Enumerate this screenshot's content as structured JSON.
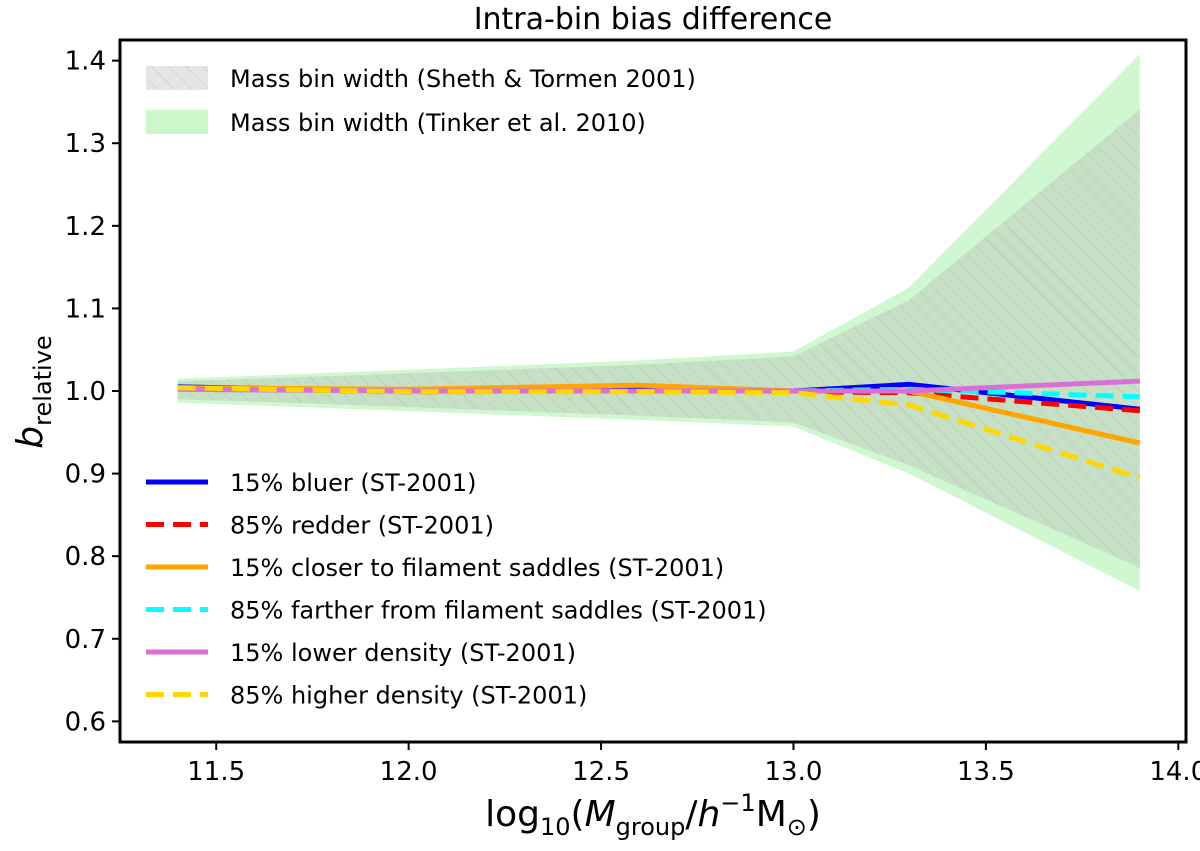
{
  "chart_data": {
    "type": "line",
    "title": "Intra-bin bias difference",
    "xlabel": {
      "prefix": "log",
      "prefix_sub": "10",
      "open": "(",
      "m": "M",
      "m_sub": "group",
      "slash": "/",
      "h": "h",
      "h_sup": "−1",
      "msun": "M",
      "msun_sub": "⊙",
      "close": ")"
    },
    "ylabel": {
      "main": "b",
      "sub": "relative"
    },
    "xlim": [
      11.25,
      14.02
    ],
    "ylim": [
      0.575,
      1.425
    ],
    "xticks": [
      11.5,
      12.0,
      12.5,
      13.0,
      13.5,
      14.0
    ],
    "xtick_labels": [
      "11.5",
      "12.0",
      "12.5",
      "13.0",
      "13.5",
      "14.0"
    ],
    "yticks": [
      0.6,
      0.7,
      0.8,
      0.9,
      1.0,
      1.1,
      1.2,
      1.3,
      1.4
    ],
    "ytick_labels": [
      "0.6",
      "0.7",
      "0.8",
      "0.9",
      "1.0",
      "1.1",
      "1.2",
      "1.3",
      "1.4"
    ],
    "grid": false,
    "bands": [
      {
        "name": "Mass bin width (Tinker et al. 2010)",
        "color": "#90ee90",
        "opacity": 0.42,
        "hatched": false,
        "x": [
          11.4,
          11.8,
          12.6,
          13.0,
          13.3,
          13.9
        ],
        "upper": [
          1.015,
          1.022,
          1.037,
          1.048,
          1.125,
          1.408
        ],
        "lower": [
          0.986,
          0.979,
          0.965,
          0.957,
          0.9,
          0.758
        ]
      },
      {
        "name": "Mass bin width (Sheth & Tormen 2001)",
        "color": "#a9a9a9",
        "opacity": 0.28,
        "hatched": true,
        "x": [
          11.4,
          11.8,
          12.6,
          13.0,
          13.3,
          13.9
        ],
        "upper": [
          1.012,
          1.018,
          1.032,
          1.042,
          1.11,
          1.341
        ],
        "lower": [
          0.99,
          0.984,
          0.97,
          0.962,
          0.91,
          0.786
        ]
      }
    ],
    "legend_bands": {
      "placement": "upper-left",
      "entries": [
        "Mass bin width (Sheth & Tormen 2001)",
        "Mass bin width (Tinker et al. 2010)"
      ]
    },
    "series": [
      {
        "name": "15% bluer (ST-2001)",
        "color": "#0000ff",
        "dashed": false,
        "x": [
          11.4,
          12.0,
          12.6,
          13.0,
          13.3,
          13.9
        ],
        "y": [
          1.005,
          1.0,
          1.002,
          1.0,
          1.008,
          0.978
        ]
      },
      {
        "name": "85% redder (ST-2001)",
        "color": "#ff0000",
        "dashed": true,
        "x": [
          11.4,
          12.0,
          12.6,
          13.0,
          13.3,
          13.9
        ],
        "y": [
          1.004,
          0.999,
          1.0,
          0.999,
          0.998,
          0.976
        ]
      },
      {
        "name": "15% closer to filament saddles (ST-2001)",
        "color": "#ffa500",
        "dashed": false,
        "x": [
          11.4,
          12.0,
          12.6,
          13.0,
          13.3,
          13.9
        ],
        "y": [
          1.004,
          1.002,
          1.007,
          1.0,
          1.0,
          0.937
        ]
      },
      {
        "name": "85% farther from filament saddles (ST-2001)",
        "color": "#00ffff",
        "dashed": true,
        "x": [
          11.4,
          12.0,
          12.6,
          13.0,
          13.3,
          13.9
        ],
        "y": [
          1.002,
          1.0,
          1.0,
          1.0,
          1.002,
          0.993
        ]
      },
      {
        "name": "15% lower density (ST-2001)",
        "color": "#da70d6",
        "dashed": false,
        "x": [
          11.4,
          12.0,
          12.6,
          13.0,
          13.3,
          13.9
        ],
        "y": [
          1.002,
          1.0,
          1.0,
          1.0,
          1.0,
          1.012
        ]
      },
      {
        "name": "85% higher density (ST-2001)",
        "color": "#ffd700",
        "dashed": true,
        "x": [
          11.4,
          12.0,
          12.6,
          13.0,
          13.3,
          13.9
        ],
        "y": [
          1.004,
          0.999,
          0.999,
          0.998,
          0.983,
          0.895
        ]
      }
    ],
    "legend_lines": {
      "placement": "lower-left"
    }
  }
}
